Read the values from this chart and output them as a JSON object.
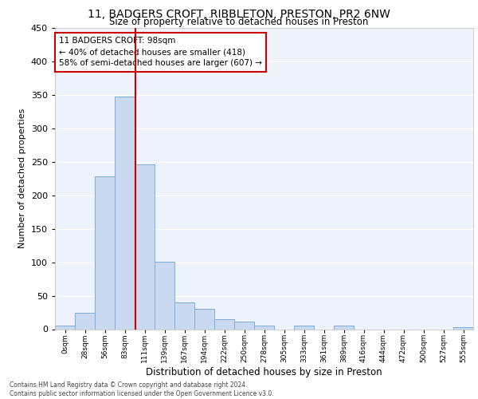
{
  "title1": "11, BADGERS CROFT, RIBBLETON, PRESTON, PR2 6NW",
  "title2": "Size of property relative to detached houses in Preston",
  "xlabel": "Distribution of detached houses by size in Preston",
  "ylabel": "Number of detached properties",
  "annotation_line1": "11 BADGERS CROFT: 98sqm",
  "annotation_line2": "← 40% of detached houses are smaller (418)",
  "annotation_line3": "58% of semi-detached houses are larger (607) →",
  "bar_labels": [
    "0sqm",
    "28sqm",
    "56sqm",
    "83sqm",
    "111sqm",
    "139sqm",
    "167sqm",
    "194sqm",
    "222sqm",
    "250sqm",
    "278sqm",
    "305sqm",
    "333sqm",
    "361sqm",
    "389sqm",
    "416sqm",
    "444sqm",
    "472sqm",
    "500sqm",
    "527sqm",
    "555sqm"
  ],
  "bar_values": [
    5,
    25,
    228,
    348,
    246,
    101,
    40,
    30,
    15,
    11,
    5,
    0,
    5,
    0,
    5,
    0,
    0,
    0,
    0,
    0,
    3
  ],
  "bar_color": "#c9d9f0",
  "bar_edge_color": "#7fadd4",
  "vline_color": "#cc0000",
  "annotation_box_color": "#cc0000",
  "background_color": "#eef2fb",
  "grid_color": "#ffffff",
  "footer1": "Contains HM Land Registry data © Crown copyright and database right 2024.",
  "footer2": "Contains public sector information licensed under the Open Government Licence v3.0.",
  "ylim": [
    0,
    450
  ],
  "yticks": [
    0,
    50,
    100,
    150,
    200,
    250,
    300,
    350,
    400,
    450
  ]
}
